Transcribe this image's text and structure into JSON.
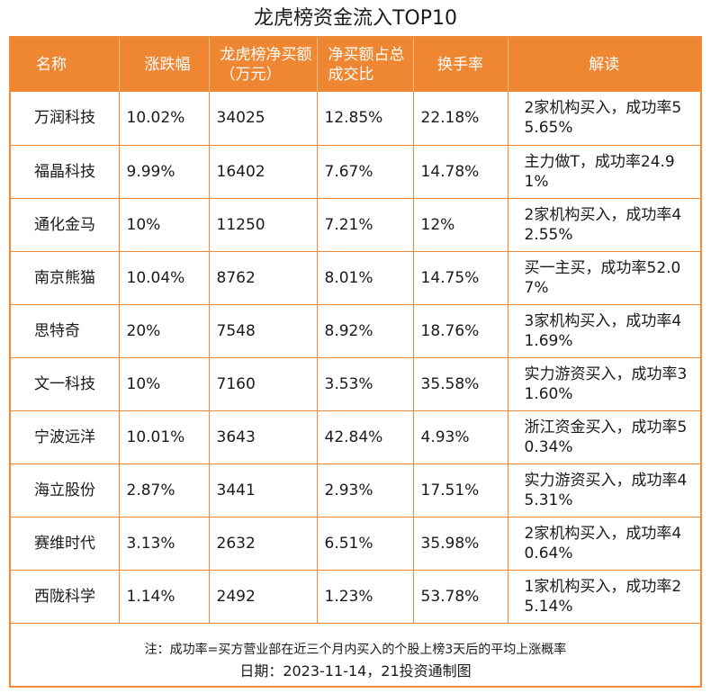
{
  "title": "龙虎榜资金流入TOP10",
  "colors": {
    "header_bg": "#ef8632",
    "border": "#ef8a38",
    "header_text": "#ffffff"
  },
  "table": {
    "headers": {
      "name": "名称",
      "change": "涨跌幅",
      "net_buy": "龙虎榜净买额（万元）",
      "share": "净买额占总成交比",
      "turnover": "换手率",
      "note": "解读"
    },
    "rows": [
      {
        "name": "万润科技",
        "change": "10.02%",
        "net_buy": "34025",
        "share": "12.85%",
        "turnover": "22.18%",
        "note": "2家机构买入，成功率55.65%"
      },
      {
        "name": "福晶科技",
        "change": "9.99%",
        "net_buy": "16402",
        "share": "7.67%",
        "turnover": "14.78%",
        "note": "主力做T，成功率24.91%"
      },
      {
        "name": "通化金马",
        "change": "10%",
        "net_buy": "11250",
        "share": "7.21%",
        "turnover": "12%",
        "note": "2家机构买入，成功率42.55%"
      },
      {
        "name": "南京熊猫",
        "change": "10.04%",
        "net_buy": "8762",
        "share": "8.01%",
        "turnover": "14.75%",
        "note": "买一主买，成功率52.07%"
      },
      {
        "name": "思特奇",
        "change": "20%",
        "net_buy": "7548",
        "share": "8.92%",
        "turnover": "18.76%",
        "note": "3家机构买入，成功率41.69%"
      },
      {
        "name": "文一科技",
        "change": "10%",
        "net_buy": "7160",
        "share": "3.53%",
        "turnover": "35.58%",
        "note": "实力游资买入，成功率31.60%"
      },
      {
        "name": "宁波远洋",
        "change": "10.01%",
        "net_buy": "3643",
        "share": "42.84%",
        "turnover": "4.93%",
        "note": "浙江资金买入，成功率50.34%"
      },
      {
        "name": "海立股份",
        "change": "2.87%",
        "net_buy": "3441",
        "share": "2.93%",
        "turnover": "17.51%",
        "note": "实力游资买入，成功率45.31%"
      },
      {
        "name": "赛维时代",
        "change": "3.13%",
        "net_buy": "2632",
        "share": "6.51%",
        "turnover": "35.98%",
        "note": "2家机构买入，成功率40.64%"
      },
      {
        "name": "西陇科学",
        "change": "1.14%",
        "net_buy": "2492",
        "share": "1.23%",
        "turnover": "53.78%",
        "note": "1家机构买入，成功率25.14%"
      }
    ]
  },
  "footer": {
    "note": "注：成功率=买方营业部在近三个月内买入的个股上榜3天后的平均上涨概率",
    "date_source": "日期：2023-11-14，21投资通制图"
  }
}
